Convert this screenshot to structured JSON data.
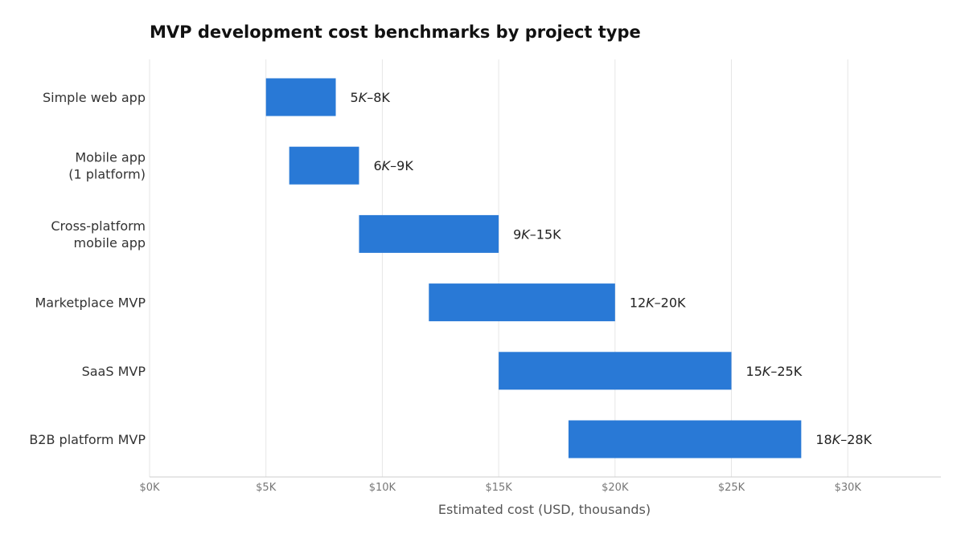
{
  "chart_data": {
    "type": "bar",
    "orientation": "horizontal",
    "variant": "floating-range",
    "title": "MVP development cost benchmarks by project type",
    "xlabel": "Estimated cost (USD, thousands)",
    "ylabel": "",
    "xlim": [
      0,
      34000
    ],
    "x_ticks": [
      0,
      5000,
      10000,
      15000,
      20000,
      25000,
      30000
    ],
    "x_tick_labels": [
      "$0K",
      "$5K",
      "$10K",
      "$15K",
      "$20K",
      "$25K",
      "$30K"
    ],
    "grid": true,
    "bar_color": "#2979d6",
    "categories": [
      [
        "Simple web app"
      ],
      [
        "Mobile app",
        "(1 platform)"
      ],
      [
        "Cross-platform",
        "mobile app"
      ],
      [
        "Marketplace MVP"
      ],
      [
        "SaaS MVP"
      ],
      [
        "B2B platform MVP"
      ]
    ],
    "ranges": [
      [
        5000,
        8000
      ],
      [
        6000,
        9000
      ],
      [
        9000,
        15000
      ],
      [
        12000,
        20000
      ],
      [
        15000,
        25000
      ],
      [
        18000,
        28000
      ]
    ],
    "data_labels": [
      [
        "5",
        "K",
        "–8K"
      ],
      [
        "6",
        "K",
        "–9K"
      ],
      [
        "9",
        "K",
        "–15K"
      ],
      [
        "12",
        "K",
        "–20K"
      ],
      [
        "15",
        "K",
        "–25K"
      ],
      [
        "18",
        "K",
        "–28K"
      ]
    ]
  }
}
